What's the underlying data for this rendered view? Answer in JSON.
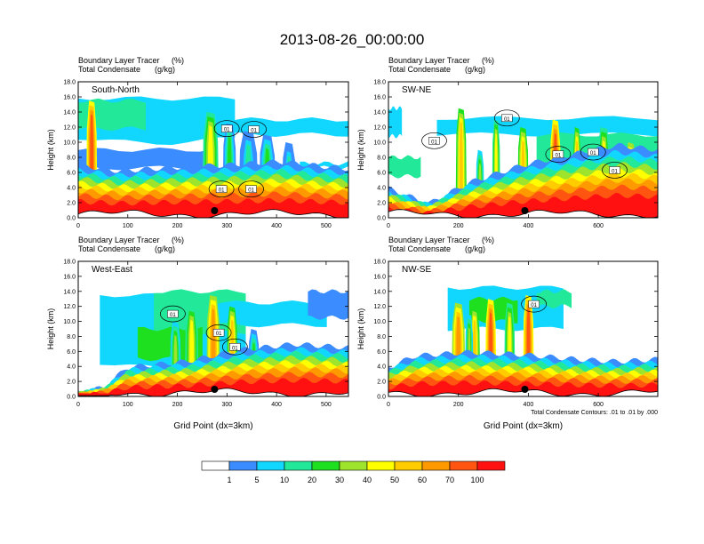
{
  "title": "2013-08-26_00:00:00",
  "panel_header": {
    "line1": "Boundary Layer Tracer",
    "line1_unit": "(%)",
    "line2": "Total Condensate",
    "line2_unit": "(g/kg)"
  },
  "ylabel": "Height (km)",
  "xlabel": "Grid Point (dx=3km)",
  "contour_note": "Total Condensate Contours: .01 to .01 by .000",
  "contour_label": "01",
  "colorbar": {
    "colors": [
      "#ffffff",
      "#3b8cff",
      "#11d7ff",
      "#22e89a",
      "#1ee01e",
      "#9ee42c",
      "#ffff00",
      "#ffcc00",
      "#ff9900",
      "#ff5511",
      "#ff1111"
    ],
    "labels": [
      "1",
      "5",
      "10",
      "20",
      "30",
      "40",
      "50",
      "60",
      "70",
      "100"
    ]
  },
  "chart_data": [
    {
      "type": "heatmap",
      "name": "South-North",
      "title": "South-North",
      "xticks": [
        0,
        100,
        200,
        300,
        400,
        500
      ],
      "xlim": [
        0,
        545
      ],
      "yticks": [
        "0.0",
        "2.0",
        "4.0",
        "6.0",
        "8.0",
        "10.0",
        "12.0",
        "14.0",
        "16.0",
        "18.0"
      ],
      "ylim": [
        0,
        18
      ],
      "marker_x": 275
    },
    {
      "type": "heatmap",
      "name": "SW-NE",
      "title": "SW-NE",
      "xticks": [
        0,
        200,
        400,
        600
      ],
      "xlim": [
        0,
        770
      ],
      "yticks": [
        "0.0",
        "2.0",
        "4.0",
        "6.0",
        "8.0",
        "10.0",
        "12.0",
        "14.0",
        "16.0",
        "18.0"
      ],
      "ylim": [
        0,
        18
      ],
      "marker_x": 390
    },
    {
      "type": "heatmap",
      "name": "West-East",
      "title": "West-East",
      "xticks": [
        0,
        100,
        200,
        300,
        400,
        500
      ],
      "xlim": [
        0,
        545
      ],
      "yticks": [
        "0.0",
        "2.0",
        "4.0",
        "6.0",
        "8.0",
        "10.0",
        "12.0",
        "14.0",
        "16.0",
        "18.0"
      ],
      "ylim": [
        0,
        18
      ],
      "marker_x": 275
    },
    {
      "type": "heatmap",
      "name": "NW-SE",
      "title": "NW-SE",
      "xticks": [
        0,
        200,
        400,
        600
      ],
      "xlim": [
        0,
        770
      ],
      "yticks": [
        "0.0",
        "2.0",
        "4.0",
        "6.0",
        "8.0",
        "10.0",
        "12.0",
        "14.0",
        "16.0",
        "18.0"
      ],
      "ylim": [
        0,
        18
      ],
      "marker_x": 390
    }
  ]
}
